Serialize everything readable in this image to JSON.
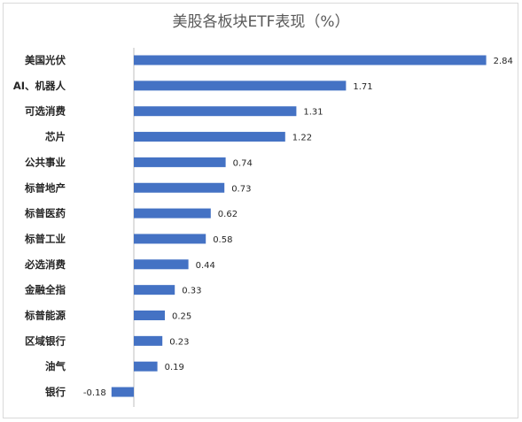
{
  "chart_data": {
    "type": "bar",
    "orientation": "horizontal",
    "title": "美股各板块ETF表现（%）",
    "categories": [
      "美国光伏",
      "AI、机器人",
      "可选消费",
      "芯片",
      "公共事业",
      "标普地产",
      "标普医药",
      "标普工业",
      "必选消费",
      "金融全指",
      "标普能源",
      "区域银行",
      "油气",
      "银行"
    ],
    "values": [
      2.84,
      1.71,
      1.31,
      1.22,
      0.74,
      0.73,
      0.62,
      0.58,
      0.44,
      0.33,
      0.25,
      0.23,
      0.19,
      -0.18
    ],
    "value_labels": [
      "2.84",
      "1.71",
      "1.31",
      "1.22",
      "0.74",
      "0.73",
      "0.62",
      "0.58",
      "0.44",
      "0.33",
      "0.25",
      "0.23",
      "0.19",
      "-0.18"
    ],
    "bar_color": "#4472c4",
    "grid": false,
    "legend": "none"
  }
}
